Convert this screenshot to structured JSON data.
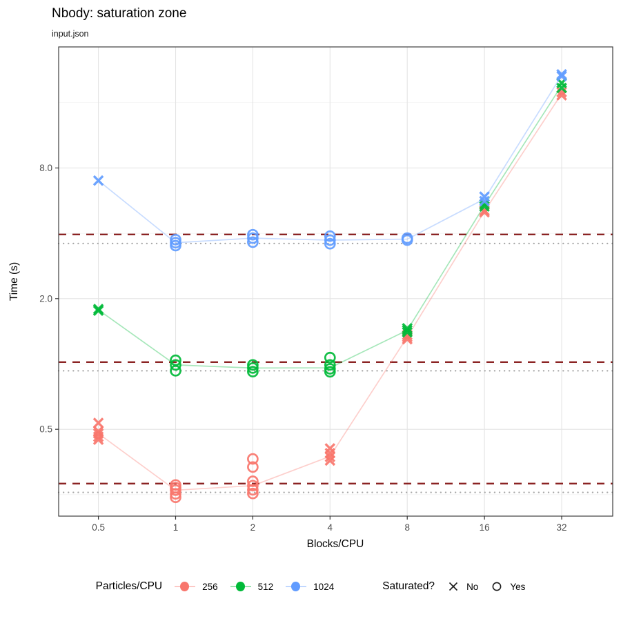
{
  "header": {
    "title": "Nbody: saturation zone",
    "subtitle": "input.json"
  },
  "axes": {
    "x": {
      "label": "Blocks/CPU",
      "scale": "log2",
      "domain": [
        0.35,
        50.6
      ],
      "ticks": [
        0.5,
        1,
        2,
        4,
        8,
        16,
        32
      ],
      "tick_labels": [
        "0.5",
        "1",
        "2",
        "4",
        "8",
        "16",
        "32"
      ]
    },
    "y": {
      "label": "Time (s)",
      "scale": "log2",
      "domain": [
        0.199,
        28.9
      ],
      "ticks": [
        0.5,
        2,
        8
      ],
      "tick_labels": [
        "0.5",
        "2.0",
        "8.0"
      ],
      "minor_gridlines": [
        0.25,
        1,
        4,
        16
      ]
    }
  },
  "legend": {
    "color": {
      "title": "Particles/CPU",
      "items": [
        {
          "label": "256",
          "color": "#F8766D"
        },
        {
          "label": "512",
          "color": "#00BA38"
        },
        {
          "label": "1024",
          "color": "#619CFF"
        }
      ]
    },
    "shape": {
      "title": "Saturated?",
      "items": [
        {
          "label": "No",
          "shape": "x"
        },
        {
          "label": "Yes",
          "shape": "open-circle"
        }
      ]
    }
  },
  "style": {
    "dashed_line_color": "#8B2323",
    "dotted_line_color": "#A6A6A6",
    "grid_major": "#E4E4E4",
    "grid_minor": "#F2F2F2",
    "panel_border": "#3C3C3C",
    "tick_text": "#4D4D4D",
    "tick_mark": "#333333"
  },
  "chart_data": {
    "type": "scatter",
    "x_categories": [
      0.5,
      1,
      2,
      4,
      8,
      16,
      32
    ],
    "point_format": [
      "blocks_per_cpu",
      "time_s",
      "saturated"
    ],
    "series": [
      {
        "name": "256",
        "color": "#F8766D",
        "points": [
          [
            0.5,
            0.535,
            0
          ],
          [
            0.5,
            0.49,
            0
          ],
          [
            0.5,
            0.478,
            0
          ],
          [
            0.5,
            0.462,
            0
          ],
          [
            0.5,
            0.448,
            0
          ],
          [
            1,
            0.277,
            1
          ],
          [
            1,
            0.269,
            1
          ],
          [
            1,
            0.262,
            1
          ],
          [
            1,
            0.252,
            1
          ],
          [
            1,
            0.243,
            1
          ],
          [
            2,
            0.365,
            1
          ],
          [
            2,
            0.335,
            1
          ],
          [
            2,
            0.288,
            1
          ],
          [
            2,
            0.275,
            1
          ],
          [
            2,
            0.263,
            1
          ],
          [
            2,
            0.253,
            1
          ],
          [
            4,
            0.408,
            0
          ],
          [
            4,
            0.388,
            0
          ],
          [
            4,
            0.373,
            0
          ],
          [
            4,
            0.359,
            0
          ],
          [
            8,
            1.36,
            0
          ],
          [
            8,
            1.33,
            0
          ],
          [
            8,
            1.3,
            0
          ],
          [
            16,
            5.1,
            0
          ],
          [
            16,
            5.0,
            0
          ],
          [
            32,
            17.9,
            0
          ],
          [
            32,
            17.3,
            0
          ]
        ],
        "median_line": {
          "x": [
            0.5,
            1,
            2,
            4,
            8,
            16,
            32
          ],
          "y": [
            0.478,
            0.262,
            0.275,
            0.375,
            1.33,
            5.05,
            17.6
          ]
        },
        "saturation_threshold_dashed": 0.281,
        "plateau_dotted": 0.256
      },
      {
        "name": "512",
        "color": "#00BA38",
        "points": [
          [
            0.5,
            1.79,
            0
          ],
          [
            0.5,
            1.76,
            0
          ],
          [
            1,
            1.04,
            1
          ],
          [
            1,
            0.99,
            1
          ],
          [
            1,
            0.93,
            1
          ],
          [
            2,
            0.99,
            1
          ],
          [
            2,
            0.958,
            1
          ],
          [
            2,
            0.922,
            1
          ],
          [
            4,
            1.07,
            1
          ],
          [
            4,
            0.99,
            1
          ],
          [
            4,
            0.95,
            1
          ],
          [
            4,
            0.92,
            1
          ],
          [
            8,
            1.46,
            0
          ],
          [
            8,
            1.43,
            0
          ],
          [
            8,
            1.4,
            0
          ],
          [
            16,
            5.45,
            0
          ],
          [
            16,
            5.32,
            0
          ],
          [
            32,
            19.7,
            0
          ],
          [
            32,
            18.7,
            0
          ]
        ],
        "median_line": {
          "x": [
            0.5,
            1,
            2,
            4,
            8,
            16,
            32
          ],
          "y": [
            1.775,
            0.99,
            0.958,
            0.96,
            1.43,
            5.38,
            19.2
          ]
        },
        "saturation_threshold_dashed": 1.02,
        "plateau_dotted": 0.93
      },
      {
        "name": "1024",
        "color": "#619CFF",
        "points": [
          [
            0.5,
            7.0,
            0
          ],
          [
            1,
            3.74,
            1
          ],
          [
            1,
            3.62,
            1
          ],
          [
            1,
            3.51,
            1
          ],
          [
            2,
            3.94,
            1
          ],
          [
            2,
            3.8,
            1
          ],
          [
            2,
            3.64,
            1
          ],
          [
            4,
            3.88,
            1
          ],
          [
            4,
            3.72,
            1
          ],
          [
            4,
            3.58,
            1
          ],
          [
            8,
            3.8,
            1
          ],
          [
            8,
            3.72,
            1
          ],
          [
            16,
            5.9,
            0
          ],
          [
            16,
            5.63,
            0
          ],
          [
            32,
            21.6,
            0
          ],
          [
            32,
            21.2,
            0
          ]
        ],
        "median_line": {
          "x": [
            0.5,
            1,
            2,
            4,
            8,
            16,
            32
          ],
          "y": [
            7.0,
            3.62,
            3.8,
            3.72,
            3.76,
            5.76,
            21.4
          ]
        },
        "saturation_threshold_dashed": 3.95,
        "plateau_dotted": 3.59
      }
    ]
  }
}
